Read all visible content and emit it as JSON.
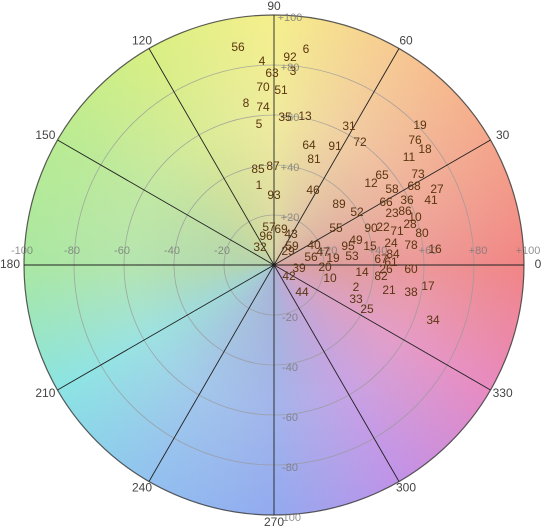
{
  "chart_data": {
    "type": "scatter",
    "xlim": [
      -100,
      100
    ],
    "ylim": [
      -100,
      100
    ],
    "xticks": [
      {
        "value": -100,
        "label": "-100"
      },
      -80,
      -60,
      -40,
      -20,
      {
        "value": 20,
        "label": "+20"
      },
      {
        "value": 40,
        "label": "+40"
      },
      {
        "value": 60,
        "label": "+60"
      },
      {
        "value": 80,
        "label": "+80"
      },
      {
        "value": 100,
        "label": "+100"
      }
    ],
    "yticks": [
      -100,
      -80,
      -60,
      -40,
      -20,
      {
        "value": 20,
        "label": "+20"
      },
      {
        "value": 40,
        "label": "+40"
      },
      {
        "value": 60,
        "label": "+60"
      },
      {
        "value": 80,
        "label": "+80"
      },
      {
        "value": 100,
        "label": "+100"
      }
    ],
    "angle_ticks": [
      0,
      30,
      60,
      90,
      120,
      150,
      180,
      210,
      240,
      270,
      300,
      330
    ],
    "color": "#5a3510",
    "point_labels": [
      "56",
      "4",
      "92",
      "6",
      "63",
      "3",
      "70",
      "51",
      "8",
      "74",
      "35",
      "13",
      "5",
      "31",
      "19",
      "72",
      "76",
      "91",
      "18",
      "64",
      "81",
      "11",
      "87",
      "85",
      "65",
      "73",
      "12",
      "1",
      "46",
      "58",
      "68",
      "27",
      "93",
      "36",
      "41",
      "66",
      "89",
      "52",
      "23",
      "86",
      "10",
      "28",
      "57",
      "69",
      "55",
      "90",
      "22",
      "71",
      "80",
      "96",
      "43",
      "49",
      "95",
      "15",
      "24",
      "78",
      "32",
      "59",
      "40",
      "16",
      "47",
      "56",
      "19",
      "53",
      "84",
      "67",
      "29",
      "20",
      "39",
      "42",
      "10",
      "14",
      "61",
      "26",
      "82",
      "60",
      "2",
      "21",
      "38",
      "17",
      "44",
      "33",
      "25",
      "34"
    ],
    "x": [
      -14.4,
      -4.8,
      6.4,
      12.8,
      -0.8,
      7.6,
      -4.4,
      2.8,
      -11.2,
      -4.4,
      4.4,
      12.4,
      -6,
      30,
      58.4,
      34.4,
      56.4,
      24.4,
      60.4,
      14,
      16,
      54,
      -0.4,
      -6.4,
      43.2,
      57.6,
      38.8,
      -6,
      15.6,
      47.2,
      56,
      65.2,
      0,
      53.2,
      62.8,
      44.8,
      26,
      33.2,
      47.2,
      52.4,
      56.4,
      54.4,
      -2,
      2.8,
      24.8,
      38.8,
      43.6,
      49.2,
      59.2,
      -3.2,
      6.8,
      32.8,
      29.6,
      38.4,
      46.8,
      54.8,
      -5.6,
      7.2,
      16,
      64.4,
      19.6,
      14.8,
      23.6,
      31.2,
      47.6,
      42.8,
      5.6,
      20.4,
      10,
      6,
      22.4,
      35.2,
      46.8,
      44.8,
      42.8,
      54.8,
      32.8,
      46,
      54.8,
      61.6,
      11.2,
      32.8,
      37.2,
      63.6
    ],
    "values": [
      86.8,
      81.2,
      82.8,
      86,
      76.4,
      77.2,
      70.8,
      69.6,
      64.4,
      62.8,
      58.8,
      59.2,
      56,
      55.2,
      55.6,
      48.8,
      49.6,
      47.2,
      46,
      47.6,
      42,
      42.8,
      39.2,
      38,
      35.6,
      36,
      32.4,
      31.6,
      29.6,
      30,
      31.2,
      30,
      27.6,
      25.6,
      25.6,
      24.8,
      24,
      20.8,
      20.4,
      21.2,
      18.8,
      16,
      14.8,
      14,
      14.4,
      14.4,
      14.8,
      13.2,
      12.4,
      11.2,
      12,
      9.6,
      7.2,
      7.2,
      8.4,
      7.6,
      6.8,
      7.2,
      7.6,
      6,
      4.8,
      2.8,
      2.4,
      3.2,
      4,
      2,
      5.2,
      -1.2,
      -1.6,
      -4.8,
      -5.6,
      -3.2,
      0.8,
      -2,
      -4.8,
      -2,
      -9.2,
      -10.4,
      -11.2,
      -8.8,
      -11.2,
      -14,
      -18,
      -22.4
    ]
  }
}
